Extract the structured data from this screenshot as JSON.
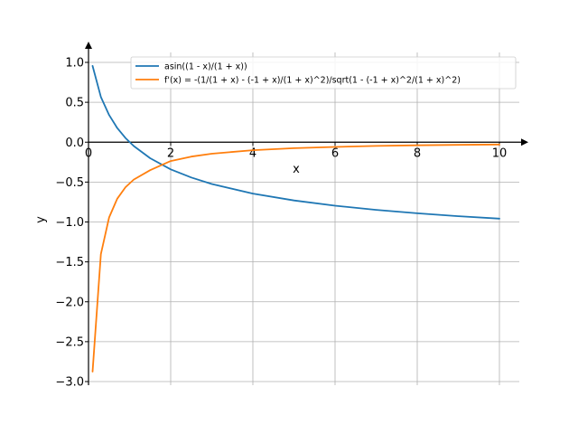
{
  "chart_data": {
    "type": "line",
    "title": "",
    "xlabel": "x",
    "ylabel": "y",
    "xlim": [
      0,
      10.5
    ],
    "ylim": [
      -3.05,
      1.1
    ],
    "grid": true,
    "legend_position": "top-right",
    "x_ticks": [
      0,
      2,
      4,
      6,
      8,
      10
    ],
    "x_tick_labels": [
      "0",
      "2",
      "4",
      "6",
      "8",
      "10"
    ],
    "y_ticks": [
      1.0,
      0.5,
      0.0,
      -0.5,
      -1.0,
      -1.5,
      -2.0,
      -2.5,
      -3.0
    ],
    "y_tick_labels": [
      "1.0",
      "0.5",
      "0.0",
      "−0.5",
      "−1.0",
      "−1.5",
      "−2.0",
      "−2.5",
      "−3.0"
    ],
    "series": [
      {
        "name": "asin((1 - x)/(1 + x))",
        "color": "#1f77b4",
        "x": [
          0.1,
          0.3,
          0.5,
          0.7,
          0.9,
          1.1,
          1.5,
          2.0,
          2.5,
          3.0,
          4.0,
          5.0,
          6.0,
          7.0,
          8.0,
          9.0,
          10.0
        ],
        "y": [
          0.956,
          0.567,
          0.34,
          0.177,
          0.053,
          -0.048,
          -0.201,
          -0.34,
          -0.442,
          -0.524,
          -0.644,
          -0.73,
          -0.796,
          -0.848,
          -0.891,
          -0.927,
          -0.958
        ]
      },
      {
        "name": "f'(x) = -(1/(1 + x) - (-1 + x)/(1 + x)^2)/sqrt(1 - (-1 + x)^2/(1 + x)^2)",
        "color": "#ff7f0e",
        "x": [
          0.1,
          0.3,
          0.5,
          0.7,
          0.9,
          1.1,
          1.5,
          2.0,
          2.5,
          3.0,
          4.0,
          5.0,
          6.0,
          7.0,
          8.0,
          9.0,
          10.0
        ],
        "y": [
          -2.875,
          -1.403,
          -0.943,
          -0.709,
          -0.565,
          -0.469,
          -0.351,
          -0.236,
          -0.181,
          -0.144,
          -0.1,
          -0.075,
          -0.059,
          -0.047,
          -0.039,
          -0.033,
          -0.029
        ]
      }
    ]
  }
}
